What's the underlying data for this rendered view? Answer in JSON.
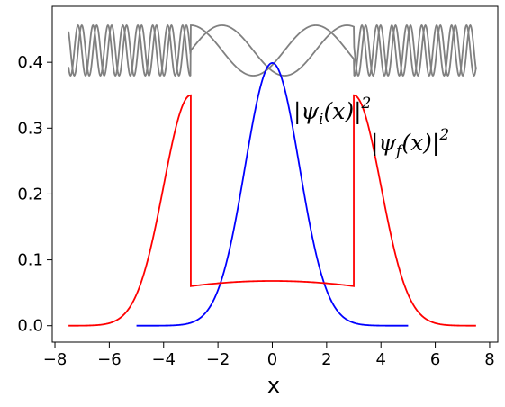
{
  "chart_data": {
    "type": "line",
    "title": "",
    "xlabel": "x",
    "ylabel": "",
    "xlim": [
      -8.1,
      8.3
    ],
    "ylim": [
      -0.025,
      0.485
    ],
    "xticks": [
      -8,
      -6,
      -4,
      -2,
      0,
      2,
      4,
      6,
      8
    ],
    "xtick_labels": [
      "−8",
      "−6",
      "−4",
      "−2",
      "0",
      "2",
      "4",
      "6",
      "8"
    ],
    "yticks": [
      0.0,
      0.1,
      0.2,
      0.3,
      0.4
    ],
    "ytick_labels": [
      "0.0",
      "0.1",
      "0.2",
      "0.3",
      "0.4"
    ],
    "grid": false,
    "series": [
      {
        "label": "|ψi(x)|²",
        "color": "#0000ff",
        "description": "Gaussian, peak 0.399 at x=0, sigma 1",
        "x": [
          -5.0,
          -4.0,
          -3.0,
          -2.5,
          -2.0,
          -1.5,
          -1.0,
          -0.5,
          0.0,
          0.5,
          1.0,
          1.5,
          2.0,
          2.5,
          3.0,
          4.0,
          5.0
        ],
        "y": [
          0.0,
          0.0001,
          0.0044,
          0.0175,
          0.054,
          0.1295,
          0.242,
          0.352,
          0.399,
          0.352,
          0.242,
          0.1295,
          0.054,
          0.0175,
          0.0044,
          0.0001,
          0.0
        ]
      },
      {
        "label": "|ψf(x)|²",
        "color": "#ff0000",
        "description": "Gaussian tails outside |x|>3 with peak 0.35 at x=±3, discontinuous jump to ~0.06 plateau inside",
        "x": [
          -7.5,
          -6.5,
          -6.0,
          -5.5,
          -5.0,
          -4.5,
          -4.0,
          -3.5,
          -3.0,
          -3.0,
          -2.0,
          -1.0,
          0.0,
          1.0,
          2.0,
          3.0,
          3.0,
          3.5,
          4.0,
          4.5,
          5.0,
          5.5,
          6.0,
          6.5,
          7.5
        ],
        "y": [
          0.0,
          0.0006,
          0.0038,
          0.0151,
          0.0475,
          0.1141,
          0.2123,
          0.309,
          0.35,
          0.06,
          0.0655,
          0.0678,
          0.068,
          0.0678,
          0.0655,
          0.06,
          0.35,
          0.309,
          0.2123,
          0.1141,
          0.0475,
          0.0151,
          0.0038,
          0.0006,
          0.0
        ]
      }
    ],
    "inset": {
      "description": "grey oscillating wavefunction traces above the plot: fast oscillations for |x|>3, slow oscillations for |x|<3",
      "color": "#808080",
      "x_range": [
        -7.5,
        7.5
      ],
      "boundary_x": [
        -3,
        3
      ]
    },
    "annotations": [
      {
        "text": "|ψi(x)|²",
        "near_series": 0
      },
      {
        "text": "|ψf(x)|²",
        "near_series": 1
      }
    ]
  }
}
